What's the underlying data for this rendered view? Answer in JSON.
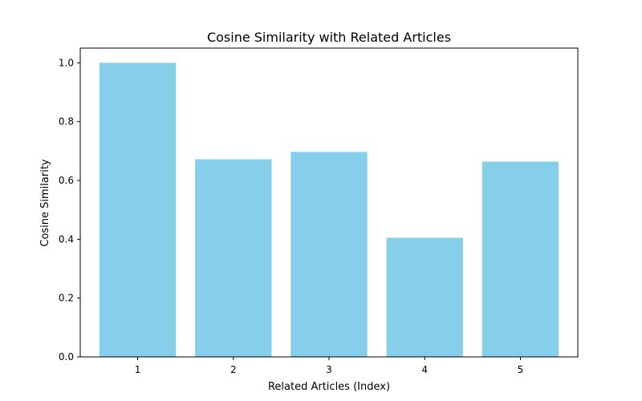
{
  "chart_data": {
    "type": "bar",
    "title": "Cosine Similarity with Related Articles",
    "xlabel": "Related Articles (Index)",
    "ylabel": "Cosine Similarity",
    "categories": [
      "1",
      "2",
      "3",
      "4",
      "5"
    ],
    "values": [
      1.0,
      0.672,
      0.697,
      0.405,
      0.664
    ],
    "ylim": [
      0.0,
      1.05
    ],
    "yticks": [
      "0.0",
      "0.2",
      "0.4",
      "0.6",
      "0.8",
      "1.0"
    ],
    "bar_color": "#87CEEB",
    "grid": false,
    "legend": "none"
  }
}
